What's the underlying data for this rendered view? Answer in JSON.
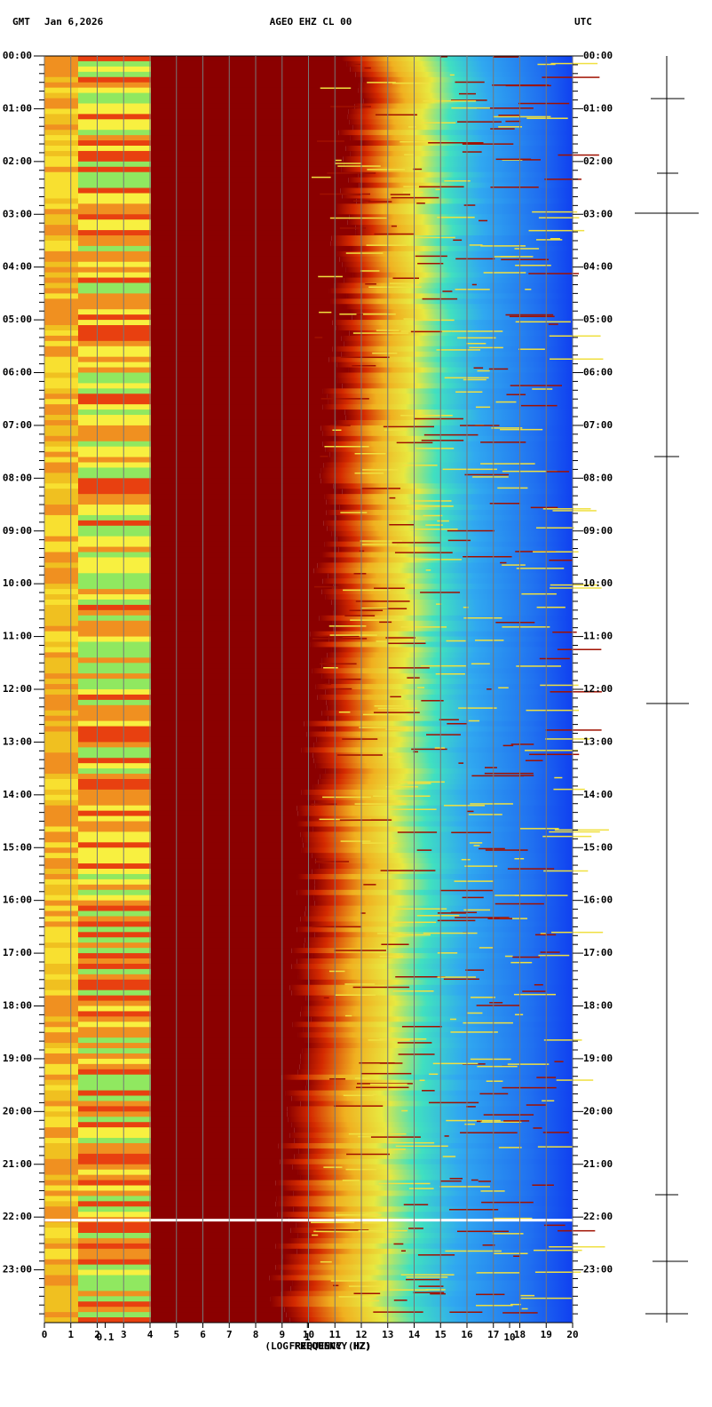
{
  "chart_data": {
    "type": "spectrogram",
    "title": "AGEO EHZ CL 00",
    "left_label": "GMT",
    "date": "Jan 6,2026",
    "right_label": "UTC",
    "xlabel": "FREQUENCY (HZ)",
    "xlabel2": "(LOG FREQUENCY HZ)",
    "xlim": [
      0,
      20
    ],
    "xticks": [
      0,
      1,
      2,
      3,
      4,
      5,
      6,
      7,
      8,
      9,
      10,
      11,
      12,
      13,
      14,
      15,
      16,
      17,
      18,
      19,
      20
    ],
    "log_xlim": [
      0.05,
      20.5
    ],
    "log_xticks": [
      0.1,
      1,
      10
    ],
    "ylim": [
      0,
      24
    ],
    "yticks": [
      {
        "value": 0,
        "label": "00:00"
      },
      {
        "value": 1,
        "label": "01:00"
      },
      {
        "value": 2,
        "label": "02:00"
      },
      {
        "value": 3,
        "label": "03:00"
      },
      {
        "value": 4,
        "label": "04:00"
      },
      {
        "value": 5,
        "label": "05:00"
      },
      {
        "value": 6,
        "label": "06:00"
      },
      {
        "value": 7,
        "label": "07:00"
      },
      {
        "value": 8,
        "label": "08:00"
      },
      {
        "value": 9,
        "label": "09:00"
      },
      {
        "value": 10,
        "label": "10:00"
      },
      {
        "value": 11,
        "label": "11:00"
      },
      {
        "value": 12,
        "label": "12:00"
      },
      {
        "value": 13,
        "label": "13:00"
      },
      {
        "value": 14,
        "label": "14:00"
      },
      {
        "value": 15,
        "label": "15:00"
      },
      {
        "value": 16,
        "label": "16:00"
      },
      {
        "value": 17,
        "label": "17:00"
      },
      {
        "value": 18,
        "label": "18:00"
      },
      {
        "value": 19,
        "label": "19:00"
      },
      {
        "value": 20,
        "label": "20:00"
      },
      {
        "value": 21,
        "label": "21:00"
      },
      {
        "value": 22,
        "label": "22:00"
      },
      {
        "value": 23,
        "label": "23:00"
      }
    ],
    "grid": true
  }
}
